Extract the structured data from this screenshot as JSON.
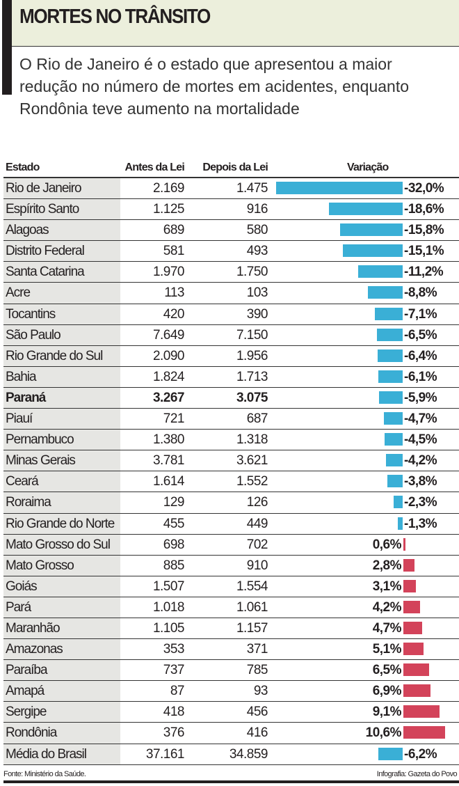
{
  "title": "MORTES NO TRÂNSITO",
  "subtitle": "O Rio de Janeiro é o estado que apresentou a maior redução no número de mortes em acidentes, enquanto Rondônia teve aumento na mortalidade",
  "chart_data": {
    "type": "table",
    "columns": [
      "Estado",
      "Antes da Lei",
      "Depois da Lei",
      "Variação"
    ],
    "colors": {
      "negative": "#3aafd6",
      "positive": "#d3435a"
    },
    "rows": [
      {
        "estado": "Rio de Janeiro",
        "antes": "2.169",
        "depois": "1.475",
        "variacao": -32.0,
        "label": "-32,0%"
      },
      {
        "estado": "Espírito Santo",
        "antes": "1.125",
        "depois": "916",
        "variacao": -18.6,
        "label": "-18,6%"
      },
      {
        "estado": "Alagoas",
        "antes": "689",
        "depois": "580",
        "variacao": -15.8,
        "label": "-15,8%"
      },
      {
        "estado": "Distrito Federal",
        "antes": "581",
        "depois": "493",
        "variacao": -15.1,
        "label": "-15,1%"
      },
      {
        "estado": "Santa Catarina",
        "antes": "1.970",
        "depois": "1.750",
        "variacao": -11.2,
        "label": "-11,2%"
      },
      {
        "estado": "Acre",
        "antes": "113",
        "depois": "103",
        "variacao": -8.8,
        "label": "-8,8%"
      },
      {
        "estado": "Tocantins",
        "antes": "420",
        "depois": "390",
        "variacao": -7.1,
        "label": "-7,1%"
      },
      {
        "estado": "São Paulo",
        "antes": "7.649",
        "depois": "7.150",
        "variacao": -6.5,
        "label": "-6,5%"
      },
      {
        "estado": "Rio Grande do Sul",
        "antes": "2.090",
        "depois": "1.956",
        "variacao": -6.4,
        "label": "-6,4%"
      },
      {
        "estado": "Bahia",
        "antes": "1.824",
        "depois": "1.713",
        "variacao": -6.1,
        "label": "-6,1%"
      },
      {
        "estado": "Paraná",
        "antes": "3.267",
        "depois": "3.075",
        "variacao": -5.9,
        "label": "-5,9%",
        "bold": true
      },
      {
        "estado": "Piauí",
        "antes": "721",
        "depois": "687",
        "variacao": -4.7,
        "label": "-4,7%"
      },
      {
        "estado": "Pernambuco",
        "antes": "1.380",
        "depois": "1.318",
        "variacao": -4.5,
        "label": "-4,5%"
      },
      {
        "estado": "Minas Gerais",
        "antes": "3.781",
        "depois": "3.621",
        "variacao": -4.2,
        "label": "-4,2%"
      },
      {
        "estado": "Ceará",
        "antes": "1.614",
        "depois": "1.552",
        "variacao": -3.8,
        "label": "-3,8%"
      },
      {
        "estado": "Roraima",
        "antes": "129",
        "depois": "126",
        "variacao": -2.3,
        "label": "-2,3%"
      },
      {
        "estado": "Rio Grande do Norte",
        "antes": "455",
        "depois": "449",
        "variacao": -1.3,
        "label": "-1,3%"
      },
      {
        "estado": "Mato Grosso do Sul",
        "antes": "698",
        "depois": "702",
        "variacao": 0.6,
        "label": "0,6%"
      },
      {
        "estado": "Mato Grosso",
        "antes": "885",
        "depois": "910",
        "variacao": 2.8,
        "label": "2,8%"
      },
      {
        "estado": "Goiás",
        "antes": "1.507",
        "depois": "1.554",
        "variacao": 3.1,
        "label": "3,1%"
      },
      {
        "estado": "Pará",
        "antes": "1.018",
        "depois": "1.061",
        "variacao": 4.2,
        "label": "4,2%"
      },
      {
        "estado": "Maranhão",
        "antes": "1.105",
        "depois": "1.157",
        "variacao": 4.7,
        "label": "4,7%"
      },
      {
        "estado": "Amazonas",
        "antes": "353",
        "depois": "371",
        "variacao": 5.1,
        "label": "5,1%"
      },
      {
        "estado": "Paraíba",
        "antes": "737",
        "depois": "785",
        "variacao": 6.5,
        "label": "6,5%"
      },
      {
        "estado": "Amapá",
        "antes": "87",
        "depois": "93",
        "variacao": 6.9,
        "label": "6,9%"
      },
      {
        "estado": "Sergipe",
        "antes": "418",
        "depois": "456",
        "variacao": 9.1,
        "label": "9,1%"
      },
      {
        "estado": "Rondônia",
        "antes": "376",
        "depois": "416",
        "variacao": 10.6,
        "label": "10,6%"
      },
      {
        "estado": "Média do Brasil",
        "antes": "37.161",
        "depois": "34.859",
        "variacao": -6.2,
        "label": "-6,2%"
      }
    ]
  },
  "footer": {
    "source": "Fonte: Ministério da Saúde.",
    "credit": "Infografia: Gazeta do Povo"
  }
}
